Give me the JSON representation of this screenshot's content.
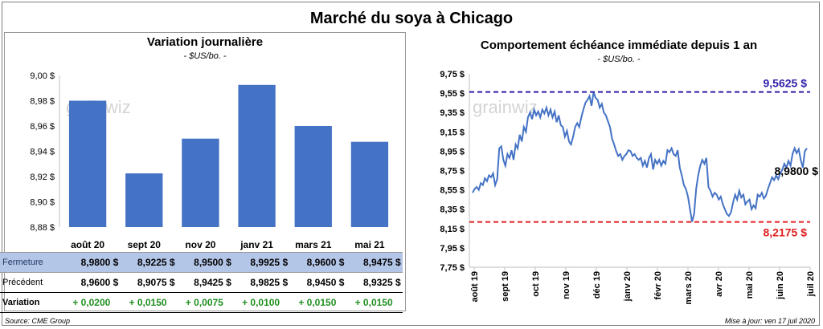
{
  "page": {
    "title": "Marché du soya à Chicago",
    "source": "Source: CME Group",
    "updated": "Mise à jour: ven 17 juil 2020"
  },
  "left": {
    "title": "Variation journalière",
    "unit": "- $US/bo. -",
    "watermark": "grainwiz"
  },
  "right": {
    "title": "Comportement échéance immédiate depuis 1 an",
    "unit": "- $US/bo. -",
    "watermark": "grainwiz"
  },
  "table": {
    "rows": [
      {
        "label": "Fermeture",
        "cells": [
          "8,9800",
          "8,9225",
          "8,9500",
          "8,9925",
          "8,9600",
          "8,9475"
        ]
      },
      {
        "label": "Précédent",
        "cells": [
          "8,9600",
          "8,9075",
          "8,9425",
          "8,9825",
          "8,9450",
          "8,9325"
        ]
      },
      {
        "label": "Variation",
        "cells": [
          "+ 0,0200",
          "+ 0,0150",
          "+ 0,0075",
          "+ 0,0100",
          "+ 0,0150",
          "+ 0,0150"
        ]
      }
    ],
    "currency": "$"
  },
  "colors": {
    "bar": "#4472c4",
    "line": "#4472c4",
    "high": "#2e1fa8",
    "low": "#e02020",
    "gain": "#1f8f1f",
    "highlight_row": "#b4c6e7"
  },
  "chart_data": [
    {
      "type": "bar",
      "categories": [
        "août 20",
        "sept 20",
        "nov 20",
        "janv 21",
        "mars 21",
        "mai 21"
      ],
      "values": [
        8.98,
        8.9225,
        8.95,
        8.9925,
        8.96,
        8.9475
      ],
      "ylim": [
        8.88,
        9.0
      ],
      "yticks": [
        "8,88 $",
        "8,90 $",
        "8,92 $",
        "8,94 $",
        "8,96 $",
        "8,98 $",
        "9,00 $"
      ],
      "grid": false
    },
    {
      "type": "line",
      "xticks": [
        "août 19",
        "sept 19",
        "oct 19",
        "nov 19",
        "déc 19",
        "janv 20",
        "févr 20",
        "mars 20",
        "avr 20",
        "mai 20",
        "juin 20",
        "juil 20"
      ],
      "yticks": [
        "7,75 $",
        "7,95 $",
        "8,15 $",
        "8,35 $",
        "8,55 $",
        "8,75 $",
        "8,95 $",
        "9,15 $",
        "9,35 $",
        "9,55 $",
        "9,75 $"
      ],
      "ylim": [
        7.75,
        9.75
      ],
      "series_values": [
        8.52,
        8.56,
        8.58,
        8.55,
        8.62,
        8.6,
        8.67,
        8.64,
        8.7,
        8.68,
        8.72,
        8.6,
        8.66,
        8.98,
        9.0,
        8.86,
        8.8,
        8.92,
        8.88,
        8.96,
        8.86,
        9.02,
        8.98,
        9.12,
        9.05,
        9.2,
        9.15,
        9.3,
        9.35,
        9.28,
        9.38,
        9.32,
        9.36,
        9.3,
        9.38,
        9.34,
        9.4,
        9.32,
        9.38,
        9.3,
        9.36,
        9.25,
        9.32,
        9.22,
        9.2,
        9.1,
        9.16,
        9.05,
        9.02,
        9.1,
        9.2,
        9.24,
        9.2,
        9.3,
        9.38,
        9.45,
        9.48,
        9.52,
        9.42,
        9.56,
        9.5,
        9.48,
        9.4,
        9.44,
        9.35,
        9.32,
        9.26,
        9.2,
        9.08,
        9.02,
        8.95,
        8.9,
        8.92,
        8.86,
        8.9,
        8.92,
        8.96,
        8.95,
        8.9,
        8.92,
        8.88,
        8.86,
        8.88,
        8.8,
        8.85,
        8.78,
        8.88,
        8.92,
        8.76,
        8.86,
        8.82,
        8.86,
        8.8,
        8.85,
        8.82,
        8.96,
        8.94,
        8.98,
        8.92,
        8.9,
        8.96,
        8.78,
        8.7,
        8.6,
        8.56,
        8.48,
        8.35,
        8.22,
        8.3,
        8.56,
        8.7,
        8.8,
        8.86,
        8.82,
        8.88,
        8.58,
        8.54,
        8.48,
        8.52,
        8.5,
        8.45,
        8.48,
        8.4,
        8.35,
        8.3,
        8.28,
        8.32,
        8.42,
        8.5,
        8.45,
        8.54,
        8.47,
        8.5,
        8.4,
        8.43,
        8.45,
        8.35,
        8.39,
        8.36,
        8.5,
        8.48,
        8.52,
        8.46,
        8.49,
        8.56,
        8.62,
        8.68,
        8.65,
        8.7,
        8.66,
        8.72,
        8.76,
        8.82,
        8.78,
        8.85,
        8.8,
        8.92,
        8.98,
        8.93,
        8.97,
        8.86,
        8.78,
        8.95,
        8.98
      ],
      "reference_lines": [
        {
          "value": 9.5625,
          "label": "9,5625 $"
        },
        {
          "value": 8.2175,
          "label": "8,2175 $"
        }
      ],
      "last_value_label": "8,9800 $",
      "grid": false
    }
  ]
}
